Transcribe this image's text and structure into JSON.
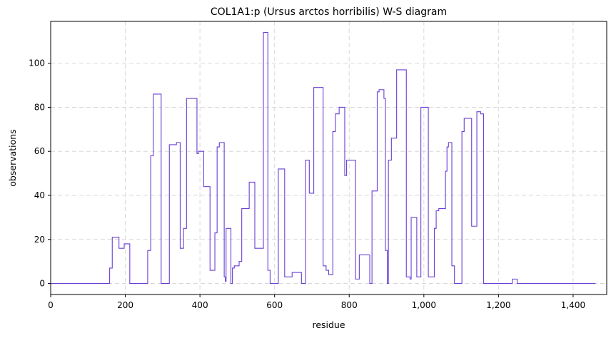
{
  "chart_data": {
    "type": "line",
    "title": "COL1A1:p (Ursus arctos horribilis) W-S diagram",
    "xlabel": "residue",
    "ylabel": "observations",
    "xlim": [
      0,
      1490
    ],
    "ylim": [
      -5,
      119
    ],
    "grid": true,
    "line_color": "#6a3fd4",
    "xticks": [
      0,
      200,
      400,
      600,
      800,
      1000,
      1200,
      1400
    ],
    "xtick_labels": [
      "0",
      "200",
      "400",
      "600",
      "800",
      "1,000",
      "1,200",
      "1,400"
    ],
    "yticks": [
      0,
      20,
      40,
      60,
      80,
      100
    ],
    "ytick_labels": [
      "0",
      "20",
      "40",
      "60",
      "80",
      "100"
    ],
    "series": [
      {
        "name": "",
        "step": true,
        "points": [
          [
            0,
            0
          ],
          [
            158,
            0
          ],
          [
            158,
            7
          ],
          [
            165,
            7
          ],
          [
            165,
            21
          ],
          [
            183,
            21
          ],
          [
            183,
            16
          ],
          [
            197,
            16
          ],
          [
            197,
            18
          ],
          [
            212,
            18
          ],
          [
            212,
            0
          ],
          [
            260,
            0
          ],
          [
            260,
            15
          ],
          [
            268,
            15
          ],
          [
            268,
            58
          ],
          [
            275,
            58
          ],
          [
            275,
            86
          ],
          [
            296,
            86
          ],
          [
            296,
            0
          ],
          [
            318,
            0
          ],
          [
            318,
            63
          ],
          [
            337,
            63
          ],
          [
            337,
            64
          ],
          [
            347,
            64
          ],
          [
            347,
            16
          ],
          [
            356,
            16
          ],
          [
            356,
            25
          ],
          [
            364,
            25
          ],
          [
            364,
            84
          ],
          [
            392,
            84
          ],
          [
            392,
            59
          ],
          [
            396,
            59
          ],
          [
            396,
            60
          ],
          [
            410,
            60
          ],
          [
            410,
            44
          ],
          [
            427,
            44
          ],
          [
            427,
            6
          ],
          [
            440,
            6
          ],
          [
            440,
            23
          ],
          [
            446,
            23
          ],
          [
            446,
            62
          ],
          [
            452,
            62
          ],
          [
            452,
            64
          ],
          [
            465,
            64
          ],
          [
            465,
            3
          ],
          [
            468,
            3
          ],
          [
            468,
            1
          ],
          [
            470,
            1
          ],
          [
            470,
            25
          ],
          [
            483,
            25
          ],
          [
            483,
            0
          ],
          [
            487,
            0
          ],
          [
            487,
            7
          ],
          [
            492,
            7
          ],
          [
            492,
            8
          ],
          [
            505,
            8
          ],
          [
            505,
            10
          ],
          [
            512,
            10
          ],
          [
            512,
            34
          ],
          [
            532,
            34
          ],
          [
            532,
            46
          ],
          [
            547,
            46
          ],
          [
            547,
            16
          ],
          [
            570,
            16
          ],
          [
            570,
            114
          ],
          [
            582,
            114
          ],
          [
            582,
            6
          ],
          [
            588,
            6
          ],
          [
            588,
            0
          ],
          [
            610,
            0
          ],
          [
            610,
            52
          ],
          [
            627,
            52
          ],
          [
            627,
            3
          ],
          [
            647,
            3
          ],
          [
            647,
            5
          ],
          [
            672,
            5
          ],
          [
            672,
            0
          ],
          [
            683,
            0
          ],
          [
            683,
            56
          ],
          [
            693,
            56
          ],
          [
            693,
            41
          ],
          [
            705,
            41
          ],
          [
            705,
            89
          ],
          [
            730,
            89
          ],
          [
            730,
            8
          ],
          [
            738,
            8
          ],
          [
            738,
            6
          ],
          [
            745,
            6
          ],
          [
            745,
            4
          ],
          [
            756,
            4
          ],
          [
            756,
            69
          ],
          [
            763,
            69
          ],
          [
            763,
            77
          ],
          [
            773,
            77
          ],
          [
            773,
            80
          ],
          [
            788,
            80
          ],
          [
            788,
            49
          ],
          [
            793,
            49
          ],
          [
            793,
            56
          ],
          [
            817,
            56
          ],
          [
            817,
            2
          ],
          [
            827,
            2
          ],
          [
            827,
            13
          ],
          [
            855,
            13
          ],
          [
            855,
            0
          ],
          [
            861,
            0
          ],
          [
            861,
            42
          ],
          [
            875,
            42
          ],
          [
            875,
            87
          ],
          [
            880,
            87
          ],
          [
            880,
            88
          ],
          [
            893,
            88
          ],
          [
            893,
            84
          ],
          [
            897,
            84
          ],
          [
            897,
            15
          ],
          [
            902,
            15
          ],
          [
            902,
            0
          ],
          [
            905,
            0
          ],
          [
            905,
            56
          ],
          [
            913,
            56
          ],
          [
            913,
            66
          ],
          [
            927,
            66
          ],
          [
            927,
            97
          ],
          [
            953,
            97
          ],
          [
            953,
            3
          ],
          [
            963,
            3
          ],
          [
            963,
            2
          ],
          [
            966,
            2
          ],
          [
            966,
            30
          ],
          [
            981,
            30
          ],
          [
            981,
            3
          ],
          [
            992,
            3
          ],
          [
            992,
            80
          ],
          [
            1012,
            80
          ],
          [
            1012,
            3
          ],
          [
            1028,
            3
          ],
          [
            1028,
            25
          ],
          [
            1033,
            25
          ],
          [
            1033,
            33
          ],
          [
            1040,
            33
          ],
          [
            1040,
            34
          ],
          [
            1058,
            34
          ],
          [
            1058,
            51
          ],
          [
            1062,
            51
          ],
          [
            1062,
            62
          ],
          [
            1066,
            62
          ],
          [
            1066,
            64
          ],
          [
            1075,
            64
          ],
          [
            1075,
            8
          ],
          [
            1082,
            8
          ],
          [
            1082,
            0
          ],
          [
            1102,
            0
          ],
          [
            1102,
            69
          ],
          [
            1108,
            69
          ],
          [
            1108,
            75
          ],
          [
            1128,
            75
          ],
          [
            1128,
            26
          ],
          [
            1142,
            26
          ],
          [
            1142,
            78
          ],
          [
            1152,
            78
          ],
          [
            1152,
            77
          ],
          [
            1160,
            77
          ],
          [
            1160,
            0
          ],
          [
            1237,
            0
          ],
          [
            1237,
            2
          ],
          [
            1250,
            2
          ],
          [
            1250,
            0
          ],
          [
            1460,
            0
          ]
        ]
      }
    ]
  }
}
